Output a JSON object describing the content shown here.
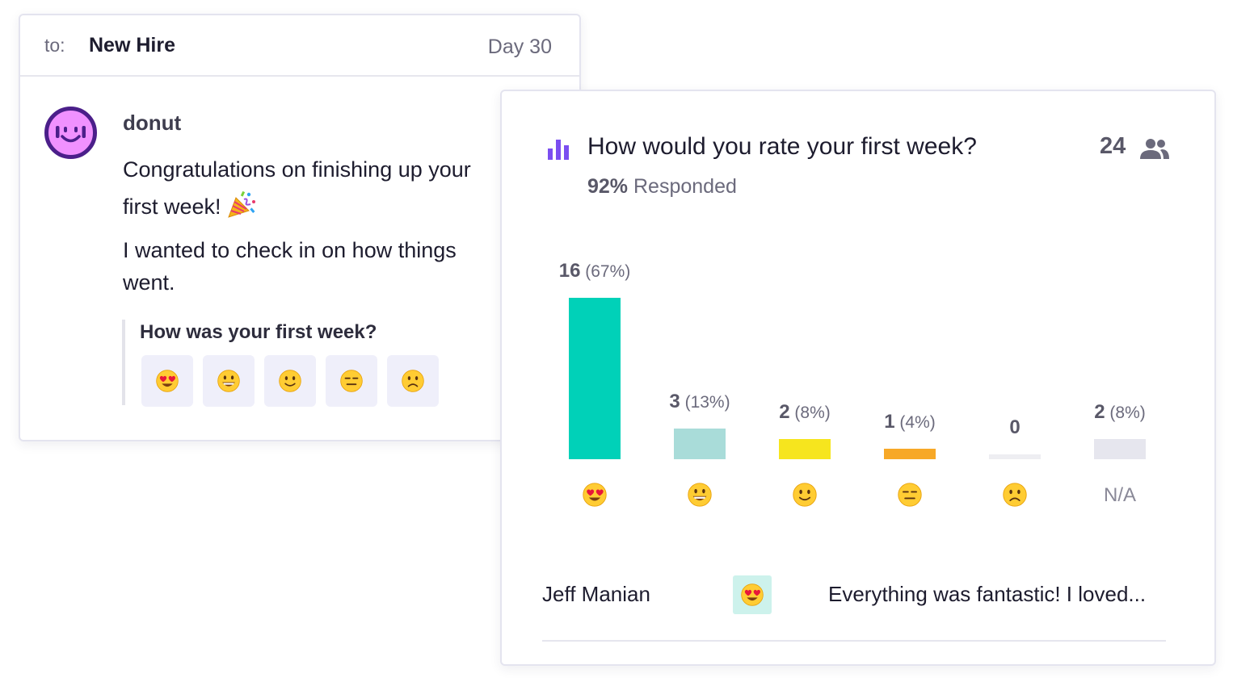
{
  "message": {
    "to_label": "to:",
    "recipient": "New Hire",
    "day": "Day 30",
    "sender": "donut",
    "avatar_icon": "donut-face-icon",
    "line1": "Congratulations on finishing up your",
    "line2": "first week!",
    "line2_icon": "party-popper-icon",
    "line3": "I wanted to check in on how things",
    "line4": "went.",
    "poll_question": "How was your first week?",
    "poll_options": [
      "heart-eyes-emoji",
      "grinning-emoji",
      "slight-smile-emoji",
      "expressionless-emoji",
      "frowning-emoji"
    ]
  },
  "results": {
    "title": "How would you rate your first week?",
    "respondents": "24",
    "responded_pct": "92%",
    "responded_label": "Responded",
    "icons": {
      "title": "bar-chart-icon",
      "respondents": "people-icon"
    }
  },
  "chart_data": {
    "type": "bar",
    "categories": [
      "heart-eyes",
      "grinning",
      "slight-smile",
      "expressionless",
      "frowning",
      "N/A"
    ],
    "values": [
      16,
      3,
      2,
      1,
      0,
      2
    ],
    "value_labels": [
      "16",
      "3",
      "2",
      "1",
      "0",
      "2"
    ],
    "pct_labels": [
      "(67%)",
      "(13%)",
      "(8%)",
      "(4%)",
      "",
      "(8%)"
    ],
    "colors": [
      "#00d1b8",
      "#a9dcd9",
      "#f6e51e",
      "#f7a827",
      "#eeeef2",
      "#e6e6ee"
    ],
    "na_label": "N/A",
    "grid": false
  },
  "response": {
    "name": "Jeff Manian",
    "emoji": "heart-eyes-emoji",
    "text": "Everything was fantastic! I loved..."
  },
  "colors": {
    "bar_icon": "#7b4ef0",
    "avatar_fill": "#f091ff",
    "avatar_ring": "#4b1f8a"
  }
}
